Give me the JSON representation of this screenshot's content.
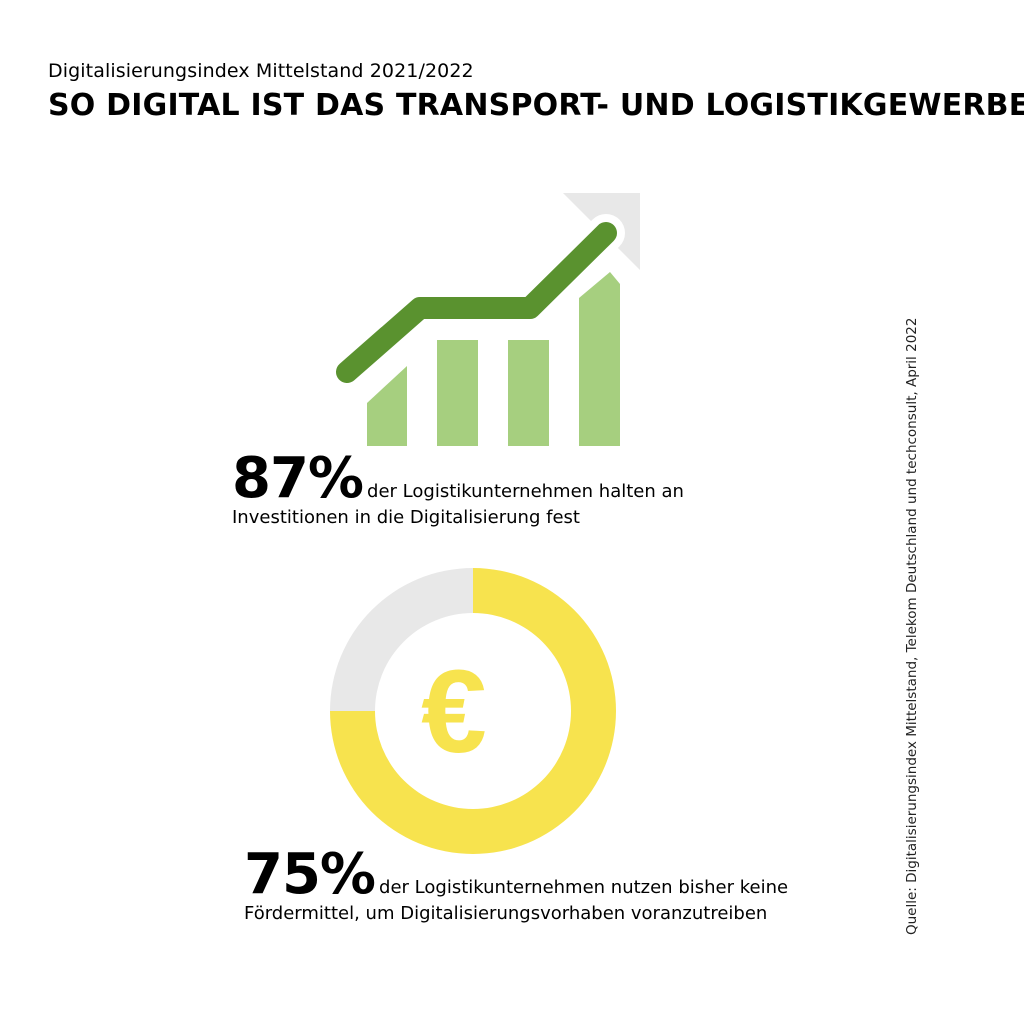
{
  "header": {
    "subtitle": "Digitalisierungsindex Mittelstand 2021/2022",
    "title": "SO DIGITAL IST DAS TRANSPORT- UND LOGISTIKGEWERBE"
  },
  "icons": {
    "growth": "bar-growth-chart-icon",
    "euro": "euro-icon",
    "euro_glyph": "€"
  },
  "colors": {
    "bar_light_green": "#a6cf7f",
    "trend_dark_green": "#5a922f",
    "arrow_grey": "#e8e8e8",
    "donut_yellow": "#f7e34e",
    "donut_grey": "#e8e8e8"
  },
  "stat1": {
    "percent": "87%",
    "line1": "der Logistikunternehmen halten an",
    "line2": "Investitionen in die Digitalisierung fest"
  },
  "chart_data": {
    "type": "pie",
    "values": [
      75,
      25
    ],
    "stat": {
      "percent": "75%",
      "line1": "der Logistikunternehmen nutzen bisher keine",
      "line2": "Fördermittel, um Digitalisierungsvorhaben voranzutreiben"
    }
  },
  "source": "Quelle: Digitalisierungsindex Mittelstand, Telekom Deutschland und techconsult, April 2022"
}
